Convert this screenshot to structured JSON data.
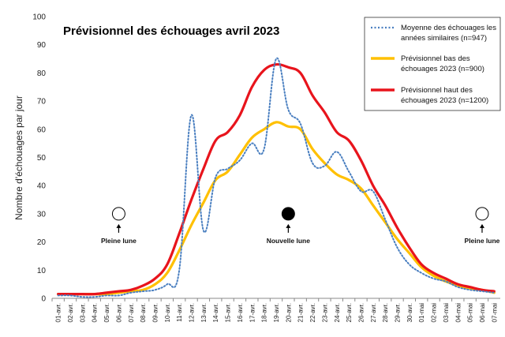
{
  "chart_data": {
    "type": "line",
    "title": "Prévisionnel des échouages avril 2023",
    "xlabel": "",
    "ylabel": "Nombre d'échouages par jour",
    "ylim": [
      0,
      100
    ],
    "yticks": [
      0,
      10,
      20,
      30,
      40,
      50,
      60,
      70,
      80,
      90,
      100
    ],
    "categories": [
      "01-avr.",
      "02-avr.",
      "03-avr.",
      "04-avr.",
      "05-avr.",
      "06-avr.",
      "07-avr.",
      "08-avr.",
      "09-avr.",
      "10-avr.",
      "11-avr.",
      "12-avr.",
      "13-avr.",
      "14-avr.",
      "15-avr.",
      "16-avr.",
      "17-avr.",
      "18-avr.",
      "19-avr.",
      "20-avr.",
      "21-avr.",
      "22-avr.",
      "23-avr.",
      "24-avr.",
      "25-avr.",
      "26-avr.",
      "27-avr.",
      "28-avr.",
      "29-avr.",
      "30-avr.",
      "01-mai",
      "02-mai",
      "03-mai",
      "04-mai",
      "05-mai",
      "06-mai",
      "07-mai"
    ],
    "series": [
      {
        "name": "Moyenne des échouages les années similaires (n=947)",
        "style": "dotted",
        "color": "#4a7fc0",
        "values": [
          1,
          1,
          0.5,
          0.5,
          1,
          1,
          2,
          2.5,
          3,
          5,
          10,
          65,
          24,
          43,
          46,
          49,
          55,
          53,
          85,
          67,
          62,
          48,
          47,
          52,
          45,
          38,
          38,
          28,
          18,
          12,
          9,
          7,
          6,
          4,
          3,
          2.5,
          2
        ]
      },
      {
        "name": "Prévisionnel bas des échouages 2023 (n=900)",
        "style": "solid",
        "color": "#ffc000",
        "values": [
          1.5,
          1.5,
          1.5,
          1.5,
          1.5,
          2,
          2.5,
          3,
          5,
          9,
          17,
          26,
          34,
          42,
          45,
          51,
          57,
          60,
          62.5,
          61,
          60,
          53,
          48,
          44,
          42,
          39,
          33,
          27,
          21,
          16,
          11,
          8,
          6,
          4.5,
          3.5,
          3,
          2
        ]
      },
      {
        "name": "Prévisionnel haut des échouages 2023 (n=1200)",
        "style": "solid",
        "color": "#e8141c",
        "values": [
          1.5,
          1.5,
          1.5,
          1.5,
          2,
          2.5,
          3,
          4.5,
          7,
          12,
          23,
          35,
          46,
          56,
          59,
          65,
          75,
          81,
          83,
          82,
          80,
          72,
          66,
          59,
          56,
          49,
          40,
          33,
          25,
          18,
          12,
          9,
          7,
          5,
          4,
          3,
          2.5
        ]
      }
    ],
    "annotations": [
      {
        "type": "full-moon",
        "category": "06-avr.",
        "y": 30,
        "label": "Pleine lune"
      },
      {
        "type": "new-moon",
        "category": "20-avr.",
        "y": 30,
        "label": "Nouvelle lune"
      },
      {
        "type": "full-moon",
        "category": "06-mai",
        "y": 30,
        "label": "Pleine lune"
      }
    ],
    "legend_position": "top-right"
  }
}
